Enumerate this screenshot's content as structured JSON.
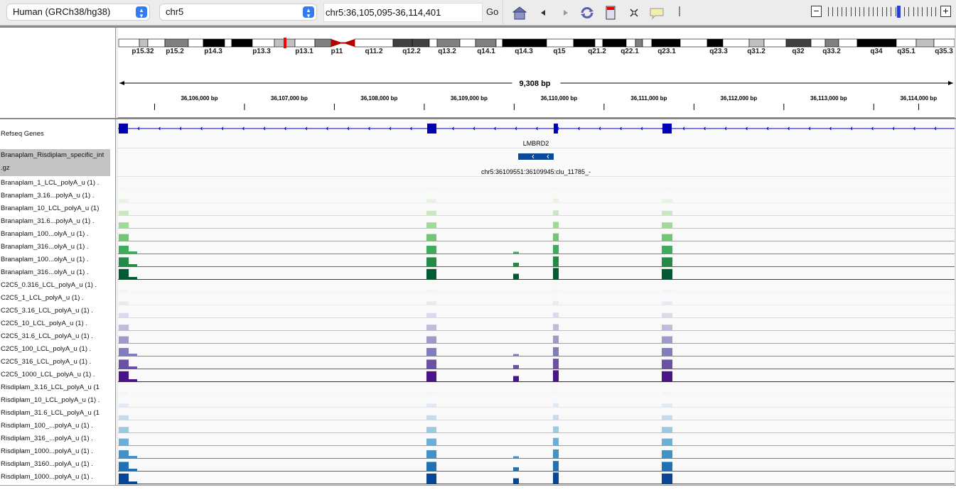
{
  "toolbar": {
    "genome": "Human (GRCh38/hg38)",
    "chromosome": "chr5",
    "locus": "chr5:36,105,095-36,114,401",
    "go_label": "Go",
    "icons": [
      "home-icon",
      "back-icon",
      "forward-icon",
      "refresh-icon",
      "region-of-interest-icon",
      "fit-to-window-icon",
      "popup-info-icon"
    ],
    "zoom_level_fraction": 0.62
  },
  "ideogram": {
    "bands": [
      "p15.32",
      "p15.2",
      "p14.3",
      "p13.3",
      "p13.1",
      "p11",
      "q11.2",
      "q12.2",
      "q13.2",
      "q14.1",
      "q14.3",
      "q15",
      "q21.2",
      "q22.1",
      "q23.1",
      "q23.3",
      "q31.2",
      "q32",
      "q33.2",
      "q34",
      "q35.1",
      "q35.3"
    ],
    "highlight_color": "#ff0000"
  },
  "ruler": {
    "span_label": "9,308 bp",
    "start": 36105095,
    "end": 36114401,
    "ticks": [
      "36,106,000 bp",
      "36,107,000 bp",
      "36,108,000 bp",
      "36,109,000 bp",
      "36,110,000 bp",
      "36,111,000 bp",
      "36,112,000 bp",
      "36,113,000 bp",
      "36,114,000 bp"
    ]
  },
  "gene_track": {
    "name": "Refseq Genes",
    "gene": "LMBRD2",
    "color": "#0000b4"
  },
  "feature_track": {
    "name_line1": "Branaplam_Risdiplam_specific_int",
    "name_line2": ".gz",
    "feature_label": "chr5:36109551:36109945:clu_11785_-",
    "color": "#0b4a9a"
  },
  "coverage_tracks": [
    {
      "name": "Branaplam_1_LCL_polyA_u  (1) .",
      "color": "#f3faf0"
    },
    {
      "name": "Branaplam_3.16...polyA_u  (1) .",
      "color": "#e5f5e0"
    },
    {
      "name": "Branaplam_10_LCL_polyA_u  (1)",
      "color": "#c7e9c0"
    },
    {
      "name": "Branaplam_31.6...polyA_u  (1) .",
      "color": "#a1d99b"
    },
    {
      "name": "Branaplam_100...olyA_u  (1) .",
      "color": "#74c476"
    },
    {
      "name": "Branaplam_316...olyA_u  (1) .",
      "color": "#41ab5d"
    },
    {
      "name": "Branaplam_100...olyA_u  (1) .",
      "color": "#238b45"
    },
    {
      "name": "Branaplam_316...olyA_u  (1) .",
      "color": "#005a32"
    },
    {
      "name": "C2C5_0.316_LCL_polyA_u  (1) .",
      "color": "#f4f3f9"
    },
    {
      "name": "C2C5_1_LCL_polyA_u  (1) .",
      "color": "#ebe9f3"
    },
    {
      "name": "C2C5_3.16_LCL_polyA_u  (1) .",
      "color": "#dadaeb"
    },
    {
      "name": "C2C5_10_LCL_polyA_u  (1) .",
      "color": "#bcbddc"
    },
    {
      "name": "C2C5_31.6_LCL_polyA_u  (1) .",
      "color": "#9e9ac8"
    },
    {
      "name": "C2C5_100_LCL_polyA_u  (1) .",
      "color": "#807dba"
    },
    {
      "name": "C2C5_316_LCL_polyA_u  (1) .",
      "color": "#6a51a3"
    },
    {
      "name": "C2C5_1000_LCL_polyA_u  (1) .",
      "color": "#4a1486"
    },
    {
      "name": "Risdiplam_3.16_LCL_polyA_u  (1",
      "color": "#eff6fc"
    },
    {
      "name": "Risdiplam_10_LCL_polyA_u  (1) .",
      "color": "#deebf7"
    },
    {
      "name": "Risdiplam_31.6_LCL_polyA_u  (1",
      "color": "#c6dbef"
    },
    {
      "name": "Risdiplam_100_...polyA_u  (1) .",
      "color": "#9ecae1"
    },
    {
      "name": "Risdiplam_316_...polyA_u  (1) .",
      "color": "#6baed6"
    },
    {
      "name": "Risdiplam_1000...polyA_u  (1) .",
      "color": "#4292c6"
    },
    {
      "name": "Risdiplam_3160...polyA_u  (1) .",
      "color": "#2171b5"
    },
    {
      "name": "Risdiplam_1000...polyA_u  (1) .",
      "color": "#084594"
    }
  ]
}
